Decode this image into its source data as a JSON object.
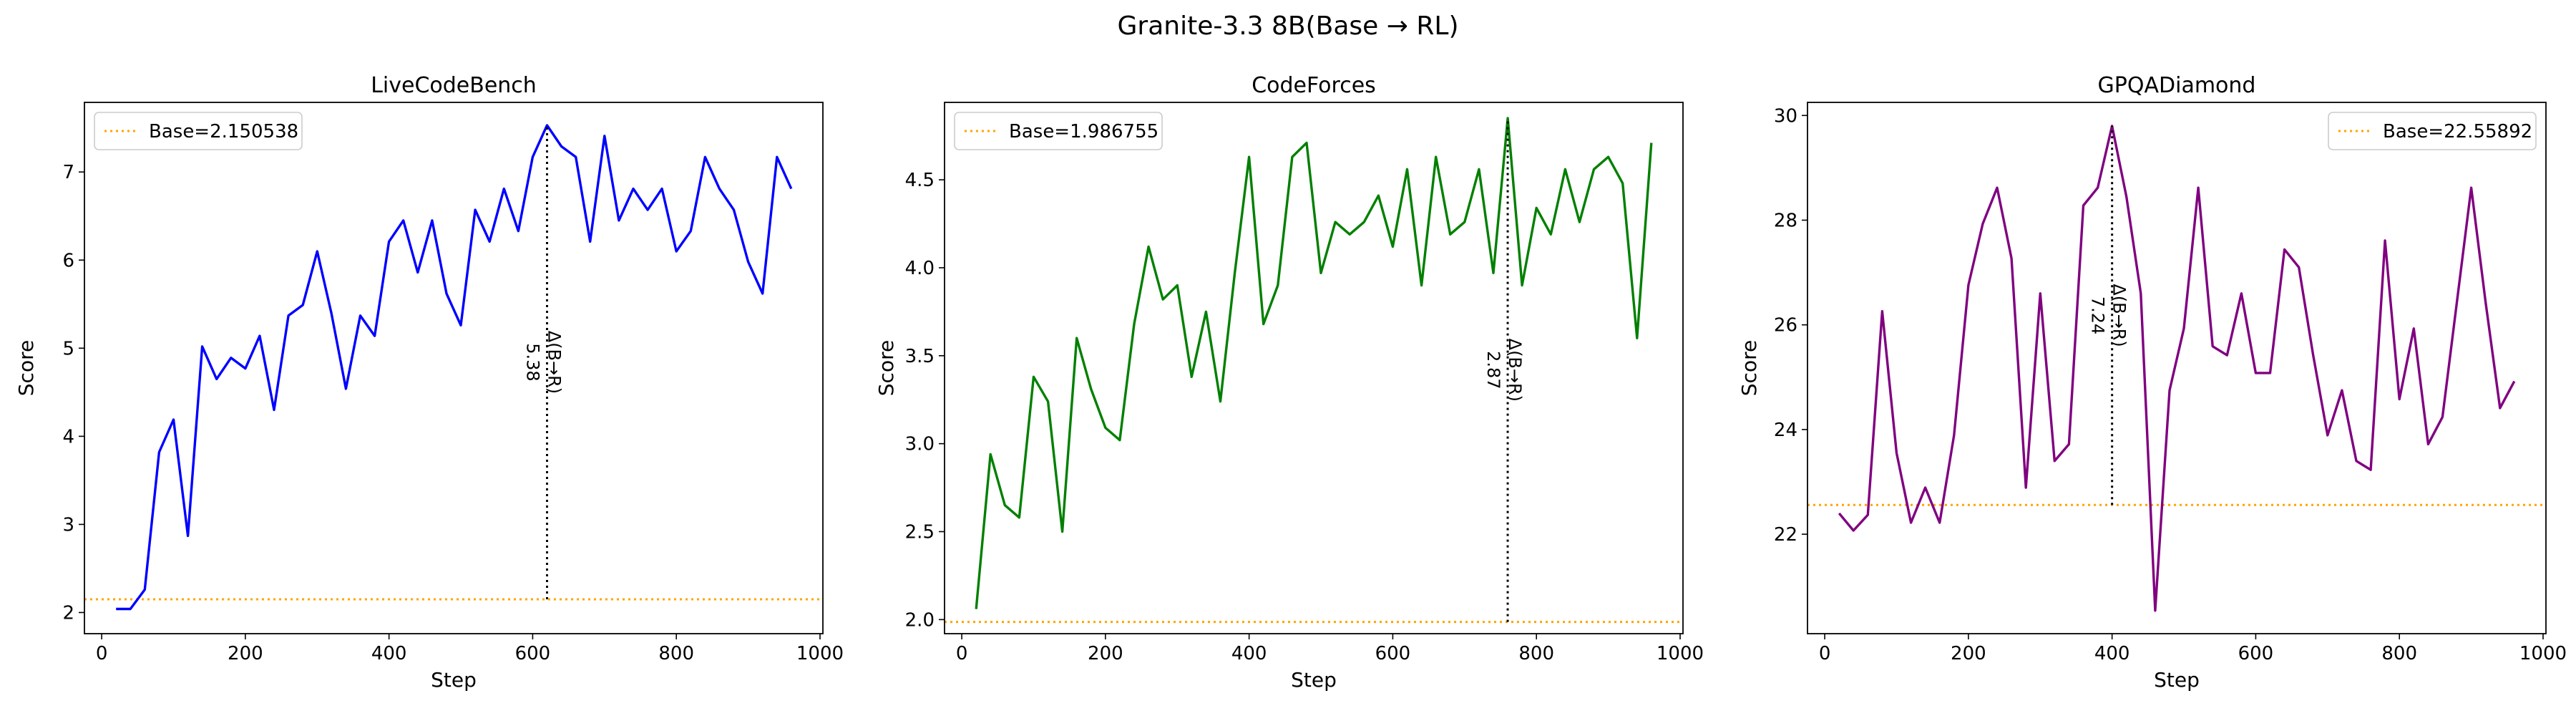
{
  "suptitle": "Granite-3.3 8B(Base → RL)",
  "chart_data": [
    {
      "type": "line",
      "title": "LiveCodeBench",
      "xlabel": "Step",
      "ylabel": "Score",
      "xlim": [
        -24,
        1004
      ],
      "ylim": [
        1.76,
        7.79
      ],
      "xticks": [
        0,
        200,
        400,
        600,
        800,
        1000
      ],
      "yticks": [
        2,
        3,
        4,
        5,
        6,
        7
      ],
      "ytick_labels": [
        "2",
        "3",
        "4",
        "5",
        "6",
        "7"
      ],
      "color": "#0000ff",
      "base": 2.150538,
      "base_label": "Base=2.150538",
      "legend_position": "top-left",
      "delta": {
        "x": 620,
        "y_top": 7.53,
        "label": "Δ(B→R)",
        "value": "5.38"
      },
      "x": [
        20,
        40,
        60,
        80,
        100,
        120,
        140,
        160,
        180,
        200,
        220,
        240,
        260,
        280,
        300,
        320,
        340,
        360,
        380,
        400,
        420,
        440,
        460,
        480,
        500,
        520,
        540,
        560,
        580,
        600,
        620,
        640,
        660,
        680,
        700,
        720,
        740,
        760,
        780,
        800,
        820,
        840,
        860,
        880,
        900,
        920,
        940,
        960
      ],
      "y": [
        2.04,
        2.04,
        2.26,
        3.82,
        4.19,
        2.87,
        5.02,
        4.65,
        4.89,
        4.77,
        5.14,
        4.3,
        5.37,
        5.49,
        6.1,
        5.39,
        4.54,
        5.37,
        5.14,
        6.21,
        6.45,
        5.86,
        6.45,
        5.62,
        5.26,
        6.57,
        6.21,
        6.81,
        6.33,
        7.17,
        7.53,
        7.29,
        7.17,
        6.21,
        7.41,
        6.45,
        6.81,
        6.57,
        6.81,
        6.1,
        6.33,
        7.17,
        6.81,
        6.57,
        5.98,
        5.62,
        7.17,
        6.81
      ]
    },
    {
      "type": "line",
      "title": "CodeForces",
      "xlabel": "Step",
      "ylabel": "Score",
      "xlim": [
        -24,
        1004
      ],
      "ylim": [
        1.92,
        4.94
      ],
      "xticks": [
        0,
        200,
        400,
        600,
        800,
        1000
      ],
      "yticks": [
        2.0,
        2.5,
        3.0,
        3.5,
        4.0,
        4.5
      ],
      "ytick_labels": [
        "2.0",
        "2.5",
        "3.0",
        "3.5",
        "4.0",
        "4.5"
      ],
      "color": "#008000",
      "base": 1.986755,
      "base_label": "Base=1.986755",
      "legend_position": "top-left",
      "delta": {
        "x": 760,
        "y_top": 4.85,
        "label": "Δ(B→R)",
        "value": "2.87"
      },
      "x": [
        20,
        40,
        60,
        80,
        100,
        120,
        140,
        160,
        180,
        200,
        220,
        240,
        260,
        280,
        300,
        320,
        340,
        360,
        380,
        400,
        420,
        440,
        460,
        480,
        500,
        520,
        540,
        560,
        580,
        600,
        620,
        640,
        660,
        680,
        700,
        720,
        740,
        760,
        780,
        800,
        820,
        840,
        860,
        880,
        900,
        920,
        940,
        960
      ],
      "y": [
        2.06,
        2.94,
        2.65,
        2.58,
        3.38,
        3.24,
        2.5,
        3.6,
        3.31,
        3.09,
        3.02,
        3.68,
        4.12,
        3.82,
        3.9,
        3.38,
        3.75,
        3.24,
        3.97,
        4.63,
        3.68,
        3.9,
        4.63,
        4.71,
        3.97,
        4.26,
        4.19,
        4.26,
        4.41,
        4.12,
        4.56,
        3.9,
        4.63,
        4.19,
        4.26,
        4.56,
        3.97,
        4.85,
        3.9,
        4.34,
        4.19,
        4.56,
        4.26,
        4.56,
        4.63,
        4.48,
        3.6,
        4.71
      ]
    },
    {
      "type": "line",
      "title": "GPQADiamond",
      "xlabel": "Step",
      "ylabel": "Score",
      "xlim": [
        -24,
        1004
      ],
      "ylim": [
        20.1,
        30.25
      ],
      "xticks": [
        0,
        200,
        400,
        600,
        800,
        1000
      ],
      "yticks": [
        22,
        24,
        26,
        28,
        30
      ],
      "ytick_labels": [
        "22",
        "24",
        "26",
        "28",
        "30"
      ],
      "color": "#800080",
      "base": 22.55892,
      "base_label": "Base=22.55892",
      "legend_position": "top-right",
      "delta": {
        "x": 400,
        "y_top": 29.8,
        "label": "Δ(B→R)",
        "value": "7.24"
      },
      "x": [
        20,
        40,
        60,
        80,
        100,
        120,
        140,
        160,
        180,
        200,
        220,
        240,
        260,
        280,
        300,
        320,
        340,
        360,
        380,
        400,
        420,
        440,
        460,
        480,
        500,
        520,
        540,
        560,
        580,
        600,
        620,
        640,
        660,
        680,
        700,
        720,
        740,
        760,
        780,
        800,
        820,
        840,
        860,
        880,
        900,
        920,
        940,
        960
      ],
      "y": [
        22.4,
        22.07,
        22.37,
        26.26,
        23.55,
        22.22,
        22.89,
        22.22,
        23.89,
        26.76,
        27.93,
        28.62,
        27.27,
        22.89,
        26.6,
        23.4,
        23.72,
        28.28,
        28.62,
        29.8,
        28.45,
        26.6,
        20.54,
        24.75,
        25.93,
        28.62,
        25.59,
        25.42,
        26.6,
        25.08,
        25.08,
        27.44,
        27.1,
        25.42,
        23.89,
        24.75,
        23.4,
        23.23,
        27.61,
        24.58,
        25.93,
        23.72,
        24.24,
        26.43,
        28.62,
        26.43,
        24.41,
        24.92
      ]
    }
  ]
}
